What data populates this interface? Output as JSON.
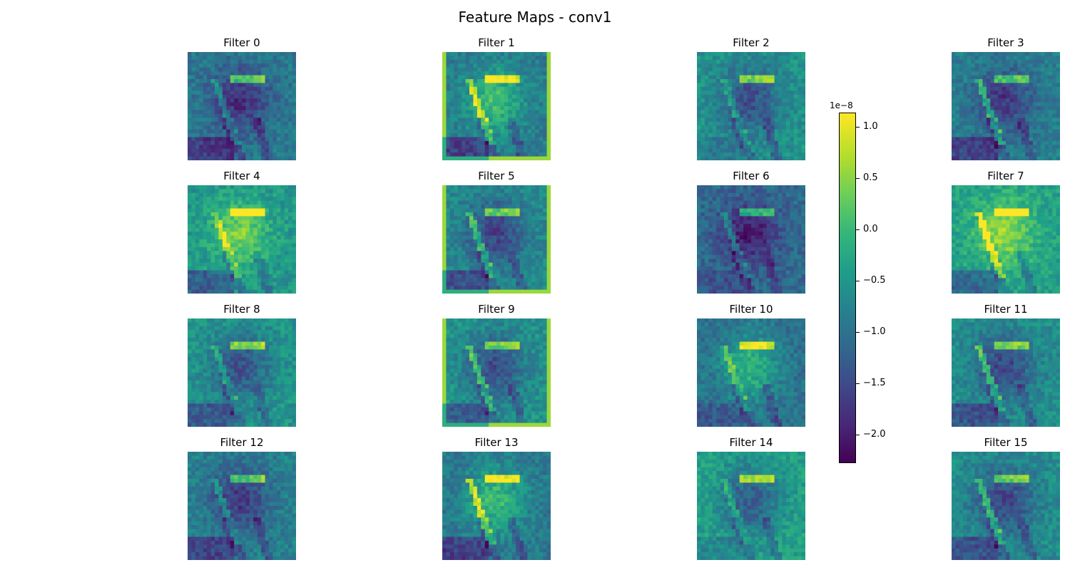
{
  "page": {
    "title": "Feature Maps - conv1"
  },
  "chart_data": {
    "type": "heatmap",
    "title": "Feature Maps - conv1",
    "panels": [
      "Filter 0",
      "Filter 1",
      "Filter 2",
      "Filter 3",
      "Filter 4",
      "Filter 5",
      "Filter 6",
      "Filter 7",
      "Filter 8",
      "Filter 9",
      "Filter 10",
      "Filter 11",
      "Filter 12",
      "Filter 13",
      "Filter 14",
      "Filter 15"
    ],
    "grid": {
      "rows": 4,
      "cols": 4
    },
    "colormap": "viridis",
    "colorbar": {
      "range": [
        -2.28,
        1.14
      ],
      "ticks": [
        1.0,
        0.5,
        0.0,
        -0.5,
        -1.0,
        -1.5,
        -2.0
      ],
      "tick_labels": [
        "1.0",
        "0.5",
        "0.0",
        "−0.5",
        "−1.0",
        "−1.5",
        "−2.0"
      ],
      "exponent_label": "1e−8"
    },
    "palette": [
      "#440154",
      "#482878",
      "#3e4989",
      "#31688e",
      "#26828e",
      "#1f9e89",
      "#35b779",
      "#6ece58",
      "#b5de2b",
      "#fde725"
    ]
  }
}
